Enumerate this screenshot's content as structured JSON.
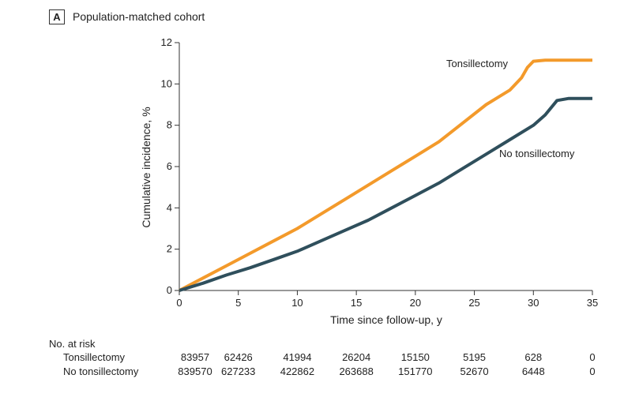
{
  "panel": {
    "tag": "A",
    "title": "Population-matched cohort"
  },
  "chart_data": {
    "type": "line",
    "xlabel": "Time since follow-up, y",
    "ylabel": "Cumulative incidence, %",
    "xlim": [
      0,
      35
    ],
    "ylim": [
      0,
      12
    ],
    "xticks": [
      0,
      5,
      10,
      15,
      20,
      25,
      30,
      35
    ],
    "yticks": [
      0,
      2,
      4,
      6,
      8,
      10,
      12
    ],
    "grid": false,
    "series": [
      {
        "name": "Tonsillectomy",
        "color": "#f39a2b",
        "x": [
          0,
          2,
          4,
          6,
          8,
          10,
          12,
          14,
          16,
          18,
          20,
          22,
          24,
          26,
          28,
          29,
          29.5,
          30,
          31,
          32,
          33,
          34,
          35
        ],
        "y": [
          0,
          0.6,
          1.2,
          1.8,
          2.4,
          3.0,
          3.7,
          4.4,
          5.1,
          5.8,
          6.5,
          7.2,
          8.1,
          9.0,
          9.7,
          10.3,
          10.8,
          11.1,
          11.15,
          11.15,
          11.15,
          11.15,
          11.15
        ]
      },
      {
        "name": "No tonsillectomy",
        "color": "#2f4f5c",
        "x": [
          0,
          2,
          4,
          6,
          8,
          10,
          12,
          14,
          16,
          18,
          20,
          22,
          24,
          26,
          28,
          30,
          31,
          32,
          33,
          34,
          35
        ],
        "y": [
          0,
          0.35,
          0.75,
          1.1,
          1.5,
          1.9,
          2.4,
          2.9,
          3.4,
          4.0,
          4.6,
          5.2,
          5.9,
          6.6,
          7.3,
          8.0,
          8.5,
          9.2,
          9.3,
          9.3,
          9.3
        ]
      }
    ]
  },
  "risk_table": {
    "title": "No. at risk",
    "times": [
      0,
      5,
      10,
      15,
      20,
      25,
      30,
      35
    ],
    "rows": [
      {
        "label": "Tonsillectomy",
        "values": [
          "83957",
          "62426",
          "41994",
          "26204",
          "15150",
          "5195",
          "628",
          "0"
        ]
      },
      {
        "label": "No tonsillectomy",
        "values": [
          "839570",
          "627233",
          "422862",
          "263688",
          "151770",
          "52670",
          "6448",
          "0"
        ]
      }
    ]
  }
}
